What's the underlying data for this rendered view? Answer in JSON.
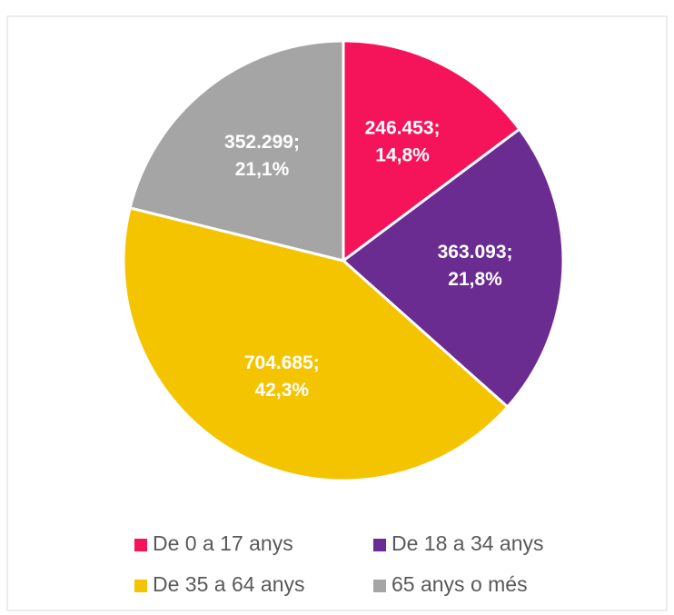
{
  "chart_data": {
    "type": "pie",
    "categories": [
      "De 0 a 17 anys",
      "De 18 a 34 anys",
      "De 35 a 64 anys",
      "65 anys o més"
    ],
    "values": [
      246453,
      363093,
      704685,
      352299
    ],
    "value_labels": [
      [
        "246.453;",
        "14,8%"
      ],
      [
        "363.093;",
        "21,8%"
      ],
      [
        "704.685;",
        "42,3%"
      ],
      [
        "352.299;",
        "21,1%"
      ]
    ],
    "colors": [
      "#f5145a",
      "#6a2c91",
      "#f5c400",
      "#a5a5a5"
    ],
    "legend": "bottom"
  }
}
